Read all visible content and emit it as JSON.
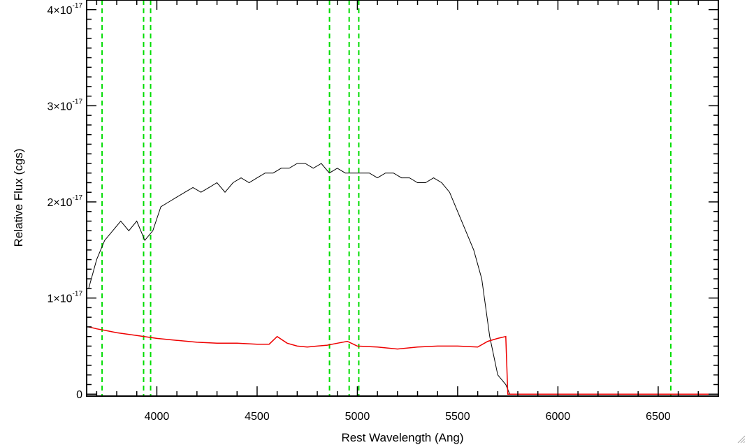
{
  "chart_data": {
    "type": "line",
    "xlabel": "Rest Wavelength (Ang)",
    "ylabel": "Relative Flux (cgs)",
    "xlim": [
      3650,
      6800
    ],
    "ylim": [
      -2e-19,
      4.1e-17
    ],
    "x_ticks": [
      4000,
      4500,
      5000,
      5500,
      6000,
      6500
    ],
    "x_tick_labels": [
      "4000",
      "4500",
      "5000",
      "5500",
      "6000",
      "6500"
    ],
    "y_ticks": [
      {
        "value": 0,
        "mant": "0",
        "exp": ""
      },
      {
        "value": 1e-17,
        "mant": "1×10",
        "exp": "-17"
      },
      {
        "value": 2e-17,
        "mant": "2×10",
        "exp": "-17"
      },
      {
        "value": 3e-17,
        "mant": "3×10",
        "exp": "-17"
      },
      {
        "value": 4e-17,
        "mant": "4×10",
        "exp": "-17"
      }
    ],
    "grid": false,
    "legend": "none",
    "reference_lines": [
      {
        "x": 3727,
        "color": "#00dd00",
        "style": "dashed"
      },
      {
        "x": 3934,
        "color": "#00dd00",
        "style": "dashed"
      },
      {
        "x": 3969,
        "color": "#00dd00",
        "style": "dashed"
      },
      {
        "x": 4861,
        "color": "#00dd00",
        "style": "dashed"
      },
      {
        "x": 4959,
        "color": "#00dd00",
        "style": "dashed"
      },
      {
        "x": 5007,
        "color": "#00dd00",
        "style": "dashed"
      },
      {
        "x": 6563,
        "color": "#00dd00",
        "style": "dashed"
      }
    ],
    "series": [
      {
        "color": "#000000",
        "x": [
          3660,
          3700,
          3740,
          3780,
          3820,
          3860,
          3900,
          3940,
          3980,
          4020,
          4060,
          4100,
          4140,
          4180,
          4220,
          4260,
          4300,
          4340,
          4380,
          4420,
          4460,
          4500,
          4540,
          4580,
          4620,
          4660,
          4700,
          4740,
          4780,
          4820,
          4860,
          4900,
          4940,
          4980,
          5020,
          5060,
          5100,
          5140,
          5180,
          5220,
          5260,
          5300,
          5340,
          5380,
          5420,
          5460,
          5500,
          5540,
          5580,
          5620,
          5660,
          5700,
          5740,
          5760,
          6000,
          6400,
          6800
        ],
        "y": [
          1.1e-17,
          1.4e-17,
          1.6e-17,
          1.7e-17,
          1.8e-17,
          1.7e-17,
          1.8e-17,
          1.6e-17,
          1.7e-17,
          1.95e-17,
          2e-17,
          2.05e-17,
          2.1e-17,
          2.15e-17,
          2.1e-17,
          2.15e-17,
          2.2e-17,
          2.1e-17,
          2.2e-17,
          2.25e-17,
          2.2e-17,
          2.25e-17,
          2.3e-17,
          2.3e-17,
          2.35e-17,
          2.35e-17,
          2.4e-17,
          2.4e-17,
          2.35e-17,
          2.4e-17,
          2.3e-17,
          2.35e-17,
          2.3e-17,
          2.3e-17,
          2.3e-17,
          2.3e-17,
          2.25e-17,
          2.3e-17,
          2.3e-17,
          2.25e-17,
          2.25e-17,
          2.2e-17,
          2.2e-17,
          2.25e-17,
          2.2e-17,
          2.1e-17,
          1.9e-17,
          1.7e-17,
          1.5e-17,
          1.2e-17,
          6e-18,
          2e-18,
          1e-18,
          0,
          0,
          0,
          0
        ]
      },
      {
        "color": "#ee0000",
        "x": [
          3660,
          3700,
          3750,
          3800,
          3900,
          4000,
          4100,
          4200,
          4300,
          4400,
          4500,
          4560,
          4600,
          4650,
          4700,
          4750,
          4800,
          4850,
          4900,
          4950,
          5000,
          5100,
          5200,
          5300,
          5400,
          5500,
          5600,
          5650,
          5700,
          5740,
          5750,
          5760,
          6000,
          6400,
          6800
        ],
        "y": [
          7e-18,
          6.8e-18,
          6.6e-18,
          6.4e-18,
          6.1e-18,
          5.8e-18,
          5.6e-18,
          5.4e-18,
          5.3e-18,
          5.3e-18,
          5.2e-18,
          5.2e-18,
          6e-18,
          5.3e-18,
          5e-18,
          4.9e-18,
          5e-18,
          5.1e-18,
          5.3e-18,
          5.5e-18,
          5e-18,
          4.9e-18,
          4.7e-18,
          4.9e-18,
          5e-18,
          5e-18,
          4.9e-18,
          5.5e-18,
          5.8e-18,
          6e-18,
          0,
          0,
          0,
          0,
          0
        ]
      }
    ]
  }
}
